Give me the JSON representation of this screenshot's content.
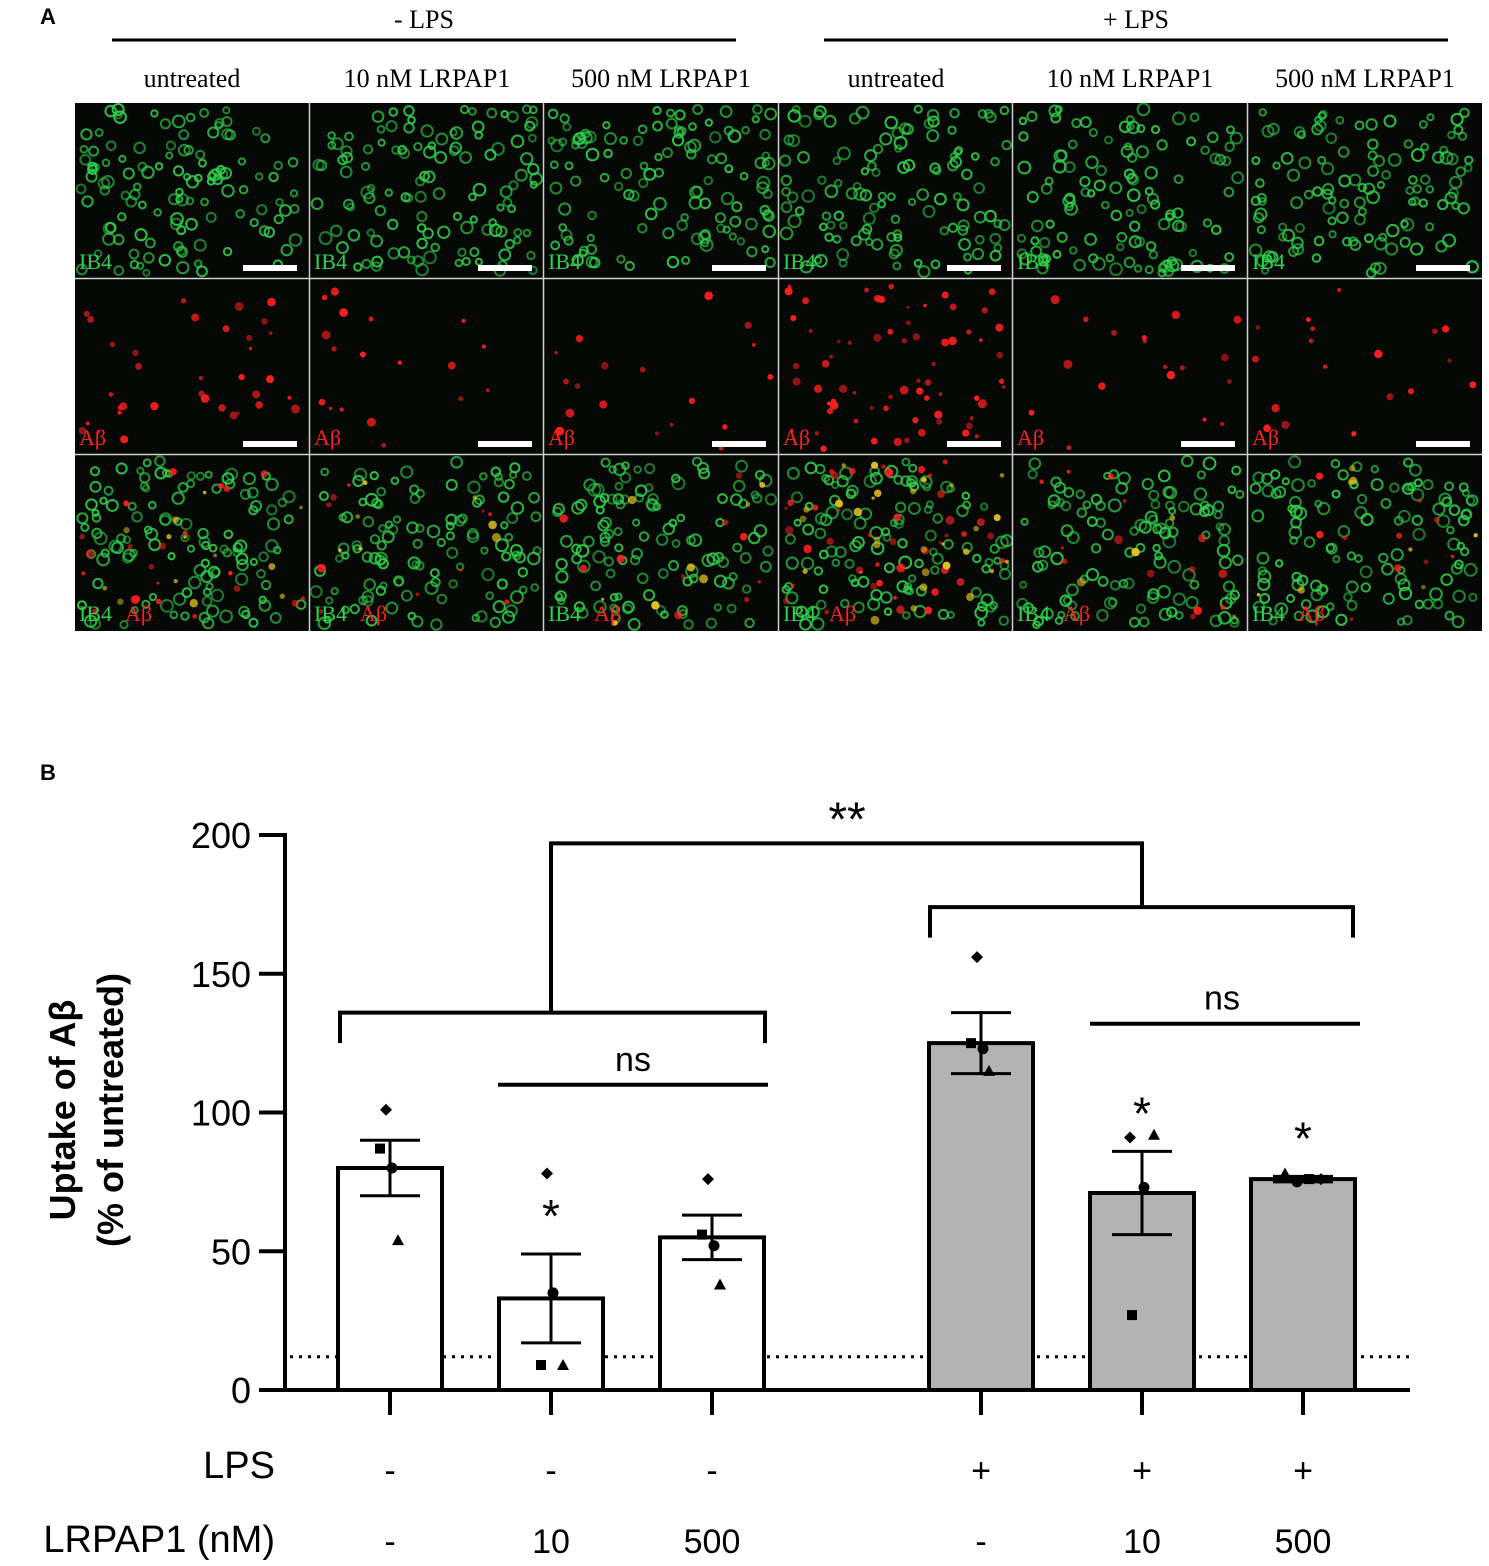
{
  "panel_a": {
    "label": "A",
    "groups": [
      {
        "title": "- LPS",
        "conditions": [
          "untreated",
          "10 nM LRPAP1",
          "500 nM LRPAP1"
        ]
      },
      {
        "title": "+ LPS",
        "conditions": [
          "untreated",
          "10 nM LRPAP1",
          "500 nM LRPAP1"
        ]
      }
    ],
    "channel_labels": {
      "green": "IB4",
      "red": "Aβ"
    },
    "colors": {
      "green": "#2fd04a",
      "red": "#ff2020",
      "background": "#060806",
      "merge_dot": "#e0c020"
    }
  },
  "chart_data": {
    "type": "bar",
    "label": "B",
    "ylabel": "Uptake of Aβ\n(% of untreated)",
    "ylabel_lines": [
      "Uptake of Aβ",
      "(% of untreated)"
    ],
    "ylim": [
      0,
      200
    ],
    "yticks": [
      0,
      50,
      100,
      150,
      200
    ],
    "baseline_dotted": 12,
    "row_labels": [
      "LPS",
      "LRPAP1 (nM)"
    ],
    "bars": [
      {
        "lps": "-",
        "lrpap1": "-",
        "value": 80,
        "sem": 10,
        "points": [
          {
            "shape": "diamond",
            "v": 101
          },
          {
            "shape": "square",
            "v": 87
          },
          {
            "shape": "circle",
            "v": 80
          },
          {
            "shape": "triangle",
            "v": 54
          }
        ],
        "fill": "#ffffff",
        "sig": ""
      },
      {
        "lps": "-",
        "lrpap1": "10",
        "value": 33,
        "sem": 16,
        "points": [
          {
            "shape": "diamond",
            "v": 78
          },
          {
            "shape": "circle",
            "v": 35
          },
          {
            "shape": "square",
            "v": 9
          },
          {
            "shape": "triangle",
            "v": 9
          }
        ],
        "fill": "#ffffff",
        "sig": "*"
      },
      {
        "lps": "-",
        "lrpap1": "500",
        "value": 55,
        "sem": 8,
        "points": [
          {
            "shape": "diamond",
            "v": 76
          },
          {
            "shape": "square",
            "v": 56
          },
          {
            "shape": "circle",
            "v": 52
          },
          {
            "shape": "triangle",
            "v": 38
          }
        ],
        "fill": "#ffffff",
        "sig": ""
      },
      {
        "lps": "+",
        "lrpap1": "-",
        "value": 125,
        "sem": 11,
        "points": [
          {
            "shape": "diamond",
            "v": 156
          },
          {
            "shape": "square",
            "v": 125
          },
          {
            "shape": "circle",
            "v": 123
          },
          {
            "shape": "triangle",
            "v": 115
          }
        ],
        "fill": "#b3b3b3",
        "sig": ""
      },
      {
        "lps": "+",
        "lrpap1": "10",
        "value": 71,
        "sem": 15,
        "points": [
          {
            "shape": "diamond",
            "v": 91
          },
          {
            "shape": "triangle",
            "v": 92
          },
          {
            "shape": "circle",
            "v": 73
          },
          {
            "shape": "square",
            "v": 27
          }
        ],
        "fill": "#b3b3b3",
        "sig": "*"
      },
      {
        "lps": "+",
        "lrpap1": "500",
        "value": 76,
        "sem": 1,
        "points": [
          {
            "shape": "triangle",
            "v": 78
          },
          {
            "shape": "circle",
            "v": 75
          },
          {
            "shape": "square",
            "v": 76
          },
          {
            "shape": "diamond",
            "v": 76
          }
        ],
        "fill": "#b3b3b3",
        "sig": "*"
      }
    ],
    "comparisons": [
      {
        "label": "ns",
        "from": 1,
        "to": 2
      },
      {
        "label": "ns",
        "from": 4,
        "to": 5
      },
      {
        "label": "**",
        "between": "groups"
      }
    ]
  }
}
